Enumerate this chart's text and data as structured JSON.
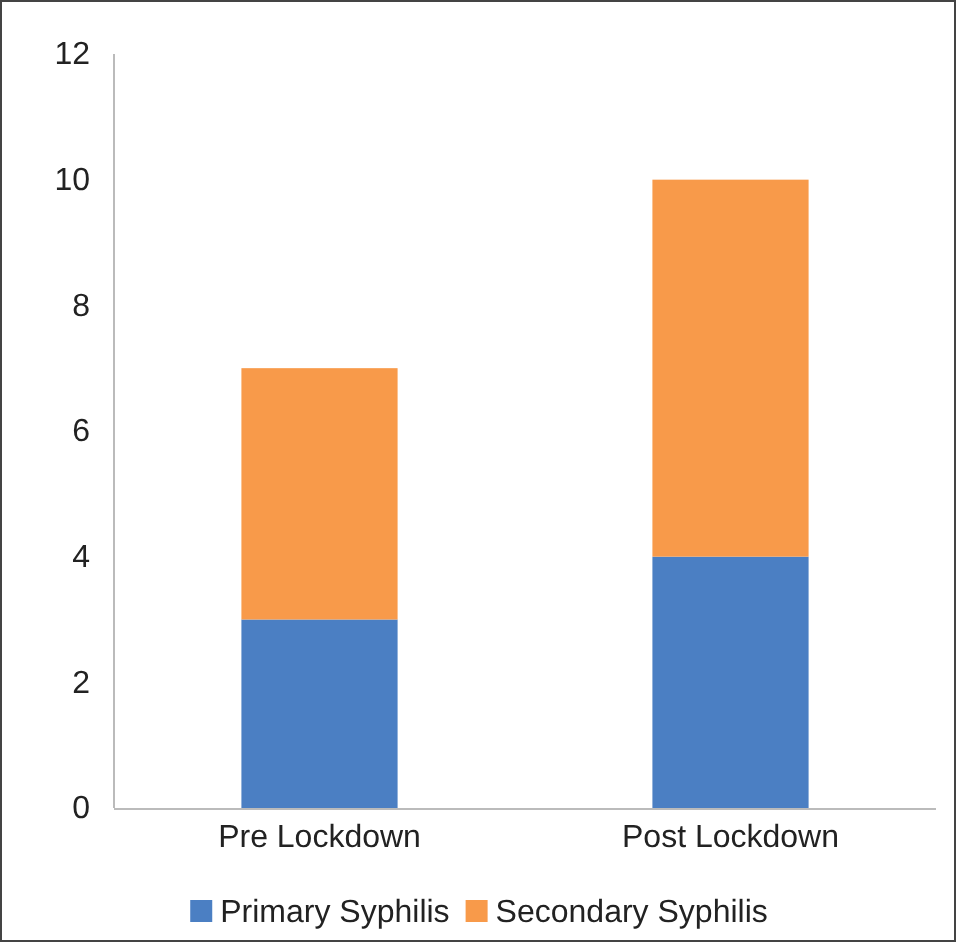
{
  "chart_data": {
    "type": "bar",
    "stacked": true,
    "categories": [
      "Pre Lockdown",
      "Post Lockdown"
    ],
    "series": [
      {
        "name": "Primary Syphilis",
        "color": "#4b7fc3",
        "values": [
          3,
          4
        ]
      },
      {
        "name": "Secondary Syphilis",
        "color": "#f89a4a",
        "values": [
          4,
          6
        ]
      }
    ],
    "ylim": [
      0,
      12
    ],
    "yticks": [
      0,
      2,
      4,
      6,
      8,
      10,
      12
    ],
    "grid": false,
    "legend": "bottom"
  }
}
